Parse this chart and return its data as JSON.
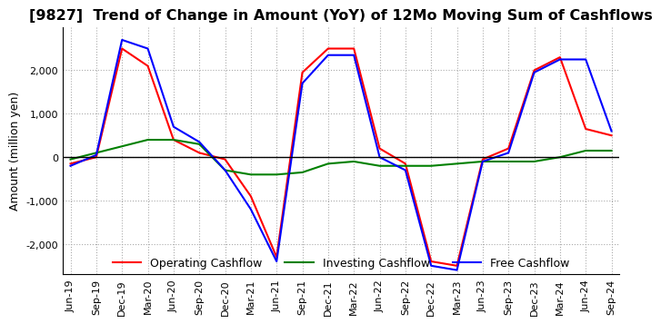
{
  "title": "[9827]  Trend of Change in Amount (YoY) of 12Mo Moving Sum of Cashflows",
  "ylabel": "Amount (million yen)",
  "ylim": [
    -2700,
    3000
  ],
  "yticks": [
    -2000,
    -1000,
    0,
    1000,
    2000
  ],
  "x_labels": [
    "Jun-19",
    "Sep-19",
    "Dec-19",
    "Mar-20",
    "Jun-20",
    "Sep-20",
    "Dec-20",
    "Mar-21",
    "Jun-21",
    "Sep-21",
    "Dec-21",
    "Mar-22",
    "Jun-22",
    "Sep-22",
    "Dec-22",
    "Mar-23",
    "Jun-23",
    "Sep-23",
    "Dec-23",
    "Mar-24",
    "Jun-24",
    "Sep-24"
  ],
  "operating_cashflow": [
    -150,
    0,
    2500,
    2100,
    400,
    100,
    -50,
    -900,
    -2300,
    1950,
    2500,
    2500,
    200,
    -150,
    -2400,
    -2500,
    -50,
    200,
    2000,
    2300,
    650,
    500
  ],
  "investing_cashflow": [
    -50,
    100,
    250,
    400,
    400,
    300,
    -300,
    -400,
    -400,
    -350,
    -150,
    -100,
    -200,
    -200,
    -200,
    -150,
    -100,
    -100,
    -100,
    0,
    150,
    150
  ],
  "free_cashflow": [
    -200,
    50,
    2700,
    2500,
    700,
    350,
    -300,
    -1200,
    -2400,
    1700,
    2350,
    2350,
    0,
    -300,
    -2500,
    -2600,
    -100,
    100,
    1950,
    2250,
    2250,
    600
  ],
  "operating_color": "#ff0000",
  "investing_color": "#008000",
  "free_color": "#0000ff",
  "background_color": "#ffffff",
  "grid_color": "#aaaaaa",
  "title_fontsize": 11.5,
  "label_fontsize": 9,
  "tick_fontsize": 8
}
